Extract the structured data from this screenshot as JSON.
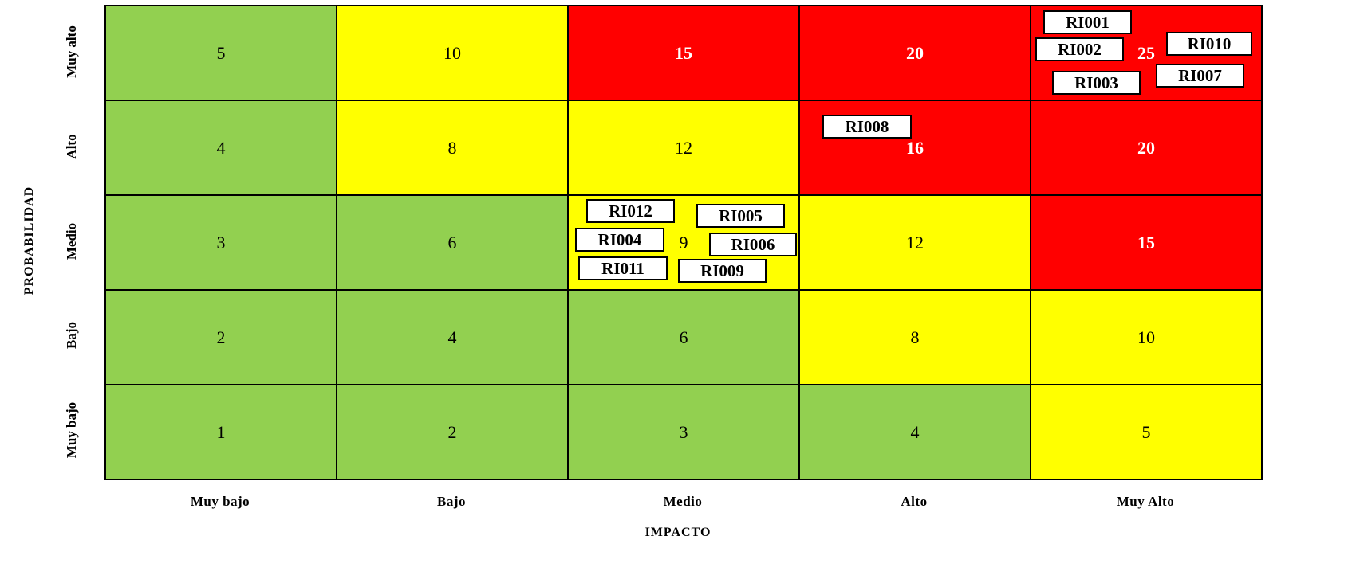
{
  "axes": {
    "x_title": "IMPACTO",
    "y_title": "PROBABILIDAD",
    "columns": [
      "Muy bajo",
      "Bajo",
      "Medio",
      "Alto",
      "Muy Alto"
    ],
    "rows": [
      "Muy alto",
      "Alto",
      "Medio",
      "Bajo",
      "Muy bajo"
    ]
  },
  "colors": {
    "green": "#92d050",
    "yellow": "#ffff00",
    "red": "#ff0000"
  },
  "cells": [
    [
      {
        "value": "5",
        "level": "green"
      },
      {
        "value": "10",
        "level": "yellow"
      },
      {
        "value": "15",
        "level": "red"
      },
      {
        "value": "20",
        "level": "red"
      },
      {
        "value": "25",
        "level": "red"
      }
    ],
    [
      {
        "value": "4",
        "level": "green"
      },
      {
        "value": "8",
        "level": "yellow"
      },
      {
        "value": "12",
        "level": "yellow"
      },
      {
        "value": "16",
        "level": "red"
      },
      {
        "value": "20",
        "level": "red"
      }
    ],
    [
      {
        "value": "3",
        "level": "green"
      },
      {
        "value": "6",
        "level": "green"
      },
      {
        "value": "9",
        "level": "yellow"
      },
      {
        "value": "12",
        "level": "yellow"
      },
      {
        "value": "15",
        "level": "red"
      }
    ],
    [
      {
        "value": "2",
        "level": "green"
      },
      {
        "value": "4",
        "level": "green"
      },
      {
        "value": "6",
        "level": "green"
      },
      {
        "value": "8",
        "level": "yellow"
      },
      {
        "value": "10",
        "level": "yellow"
      }
    ],
    [
      {
        "value": "1",
        "level": "green"
      },
      {
        "value": "2",
        "level": "green"
      },
      {
        "value": "3",
        "level": "green"
      },
      {
        "value": "4",
        "level": "green"
      },
      {
        "value": "5",
        "level": "yellow"
      }
    ]
  ],
  "risks": [
    {
      "id": "RI001",
      "row": "Muy alto",
      "col": "Muy Alto"
    },
    {
      "id": "RI002",
      "row": "Muy alto",
      "col": "Muy Alto"
    },
    {
      "id": "RI003",
      "row": "Muy alto",
      "col": "Muy Alto"
    },
    {
      "id": "RI007",
      "row": "Muy alto",
      "col": "Muy Alto"
    },
    {
      "id": "RI010",
      "row": "Muy alto",
      "col": "Muy Alto"
    },
    {
      "id": "RI008",
      "row": "Alto",
      "col": "Alto"
    },
    {
      "id": "RI012",
      "row": "Medio",
      "col": "Medio"
    },
    {
      "id": "RI005",
      "row": "Medio",
      "col": "Medio"
    },
    {
      "id": "RI004",
      "row": "Medio",
      "col": "Medio"
    },
    {
      "id": "RI006",
      "row": "Medio",
      "col": "Medio"
    },
    {
      "id": "RI011",
      "row": "Medio",
      "col": "Medio"
    },
    {
      "id": "RI009",
      "row": "Medio",
      "col": "Medio"
    }
  ]
}
